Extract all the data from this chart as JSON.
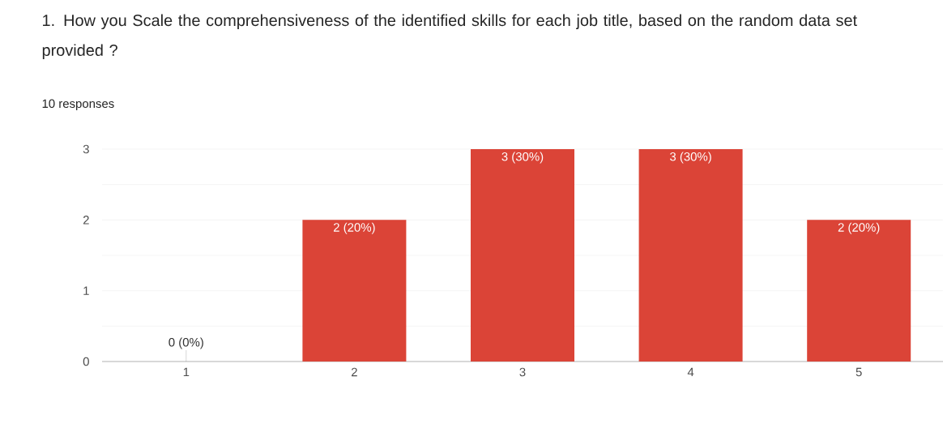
{
  "chart_data": {
    "type": "bar",
    "title": "1. How you Scale  the comprehensiveness of the identified skills for each job title, based on the random data set provided ?",
    "subtitle": "10 responses",
    "categories": [
      "1",
      "2",
      "3",
      "4",
      "5"
    ],
    "values": [
      0,
      2,
      3,
      3,
      2
    ],
    "value_labels": [
      "0 (0%)",
      "2 (20%)",
      "3 (30%)",
      "3 (30%)",
      "2 (20%)"
    ],
    "color": "#db4437",
    "ylim": [
      0,
      3
    ],
    "yticks": [
      0,
      {
        "value": 0.5,
        "label": null
      },
      1,
      {
        "value": 1.5,
        "label": null
      },
      2,
      {
        "value": 2.5,
        "label": null
      },
      3
    ],
    "grid": "y"
  }
}
